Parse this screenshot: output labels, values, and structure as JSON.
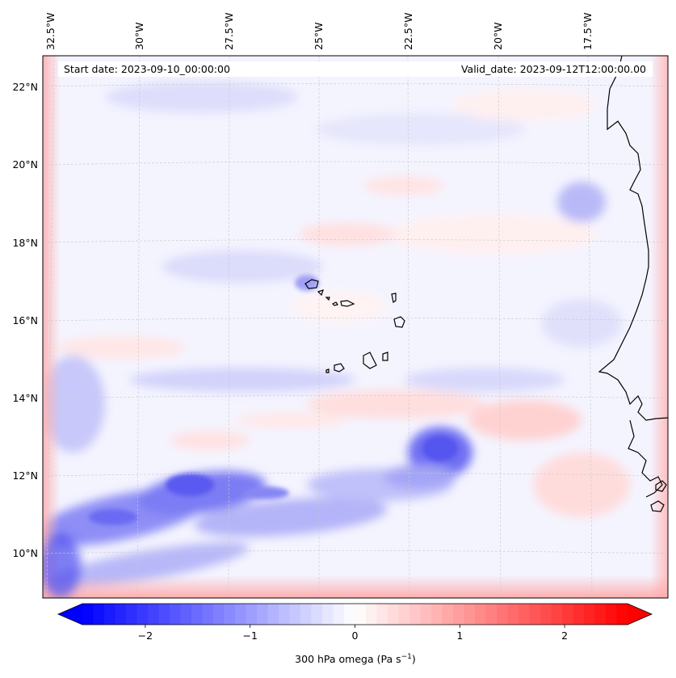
{
  "map": {
    "start_date": "Start date: 2023-09-10_00:00:00",
    "valid_date": "Valid_date: 2023-09-12T12:00:00.00",
    "lon_labels": [
      "32.5°W",
      "30°W",
      "27.5°W",
      "25°W",
      "22.5°W",
      "20°W",
      "17.5°W"
    ],
    "lat_labels": [
      "22°N",
      "20°N",
      "18°N",
      "16°N",
      "14°N",
      "12°N",
      "10°N"
    ],
    "variable": "300 hPa omega",
    "units": "Pa s",
    "units_exp": "−1"
  },
  "colorbar": {
    "ticks": [
      "−2",
      "−1",
      "0",
      "1",
      "2"
    ],
    "tick_values": [
      -2,
      -1,
      0,
      1,
      2
    ],
    "vmin": -2.6,
    "vmax": 2.6,
    "neg_color": "#0000ff",
    "pos_color": "#ff0000",
    "mid_color": "#ffffff"
  },
  "colors": {
    "coast": "#000000",
    "grid": "#c8c8c8"
  }
}
